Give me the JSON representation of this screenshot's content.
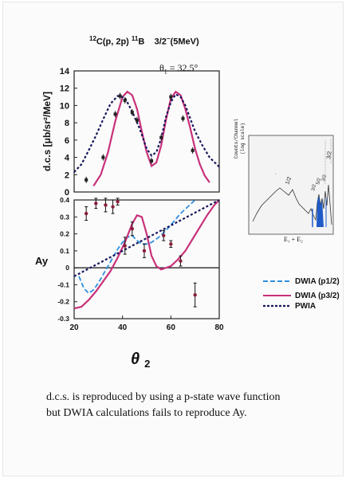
{
  "header": {
    "reaction_prefix": "12",
    "reaction_main": "C(p, 2p)",
    "residual_sup": "11",
    "residual_main": "B",
    "state": "3/2",
    "state_suffix": "(5MeV)",
    "theta1_label": "θ",
    "theta1_sub": "1",
    "theta1_value": "= 32.5°"
  },
  "caption": {
    "line1": "d.c.s. is reproduced by using a p-state wave function",
    "line2": "but DWIA calculations fails to reproduce Ay."
  },
  "colors": {
    "pink": "#c8317a",
    "blue": "#2f8fe0",
    "navy": "#17175c",
    "inset_blue": "#1f5bc8"
  },
  "chart_data": [
    {
      "type": "scatter",
      "ylabel": "d.c.s [μb/sr²/MeV]",
      "ylim": [
        0,
        14
      ],
      "xlim": [
        20,
        80
      ],
      "yticks": [
        "0",
        "2",
        "4",
        "6",
        "8",
        "10",
        "12",
        "14"
      ],
      "points": [
        {
          "x": 25,
          "y": 1.4
        },
        {
          "x": 32,
          "y": 4.0
        },
        {
          "x": 37,
          "y": 9.0
        },
        {
          "x": 39,
          "y": 11.1
        },
        {
          "x": 41,
          "y": 10.6
        },
        {
          "x": 44,
          "y": 9.2
        },
        {
          "x": 46,
          "y": 8.3
        },
        {
          "x": 52,
          "y": 3.6
        },
        {
          "x": 56,
          "y": 6.3
        },
        {
          "x": 60,
          "y": 11.0
        },
        {
          "x": 65,
          "y": 8.5
        },
        {
          "x": 69,
          "y": 4.8
        }
      ],
      "series": [
        {
          "style": "pink",
          "x": [
            28,
            31,
            34,
            37,
            40,
            42,
            44,
            46,
            48,
            50,
            52,
            54,
            56,
            58,
            60,
            62,
            64,
            66,
            68,
            70,
            72,
            74,
            76
          ],
          "y": [
            0.7,
            2.0,
            4.6,
            8.2,
            11.0,
            11.6,
            11.2,
            9.6,
            7.0,
            4.6,
            3.0,
            3.4,
            5.4,
            8.4,
            10.8,
            11.6,
            11.2,
            9.6,
            7.4,
            5.0,
            3.2,
            1.9,
            1.1
          ]
        },
        {
          "style": "navy-dotted",
          "x": [
            20,
            23,
            26,
            29,
            32,
            35,
            38,
            41,
            44,
            47,
            50,
            52,
            54,
            56,
            58,
            60,
            62,
            64,
            66,
            68,
            70,
            73,
            76,
            80
          ],
          "y": [
            2.3,
            3.2,
            4.8,
            6.5,
            8.4,
            10.2,
            11.1,
            10.9,
            9.3,
            7.4,
            5.0,
            4.2,
            4.6,
            6.2,
            8.7,
            10.4,
            11.3,
            11.0,
            10.0,
            8.5,
            7.0,
            5.4,
            4.0,
            2.9
          ]
        }
      ]
    },
    {
      "type": "scatter",
      "ylabel": "Ay",
      "xlabel": "θ",
      "xlabel_sub": "2",
      "ylim": [
        -0.3,
        0.4
      ],
      "xlim": [
        20,
        80
      ],
      "yticks": [
        "0.4",
        "0.3",
        "0.2",
        "0.1",
        "0",
        "-0.1",
        "-0.2",
        "-0.3"
      ],
      "xticks": [
        "20",
        "40",
        "60",
        "80"
      ],
      "points": [
        {
          "x": 25,
          "y": 0.32,
          "err": 0.04
        },
        {
          "x": 29,
          "y": 0.38,
          "err": 0.03
        },
        {
          "x": 33,
          "y": 0.37,
          "err": 0.04
        },
        {
          "x": 36,
          "y": 0.36,
          "err": 0.04
        },
        {
          "x": 38,
          "y": 0.39,
          "err": 0.02
        },
        {
          "x": 41,
          "y": 0.13,
          "err": 0.05
        },
        {
          "x": 44,
          "y": 0.23,
          "err": 0.04
        },
        {
          "x": 49,
          "y": 0.1,
          "err": 0.04
        },
        {
          "x": 57,
          "y": 0.19,
          "err": 0.03
        },
        {
          "x": 60,
          "y": 0.14,
          "err": 0.02
        },
        {
          "x": 64,
          "y": 0.04,
          "err": 0.03
        },
        {
          "x": 70,
          "y": -0.16,
          "err": 0.07
        }
      ],
      "series": [
        {
          "name": "DWIA (p1/2)",
          "style": "blue-dashed",
          "x": [
            22,
            24,
            26,
            28,
            30,
            32,
            34,
            36,
            38,
            40,
            42,
            44,
            46,
            48,
            50,
            52,
            55,
            58,
            61,
            64,
            67,
            70
          ],
          "y": [
            -0.05,
            -0.12,
            -0.15,
            -0.13,
            -0.09,
            -0.04,
            0.01,
            0.06,
            0.11,
            0.15,
            0.18,
            0.19,
            0.16,
            0.14,
            0.14,
            0.15,
            0.18,
            0.22,
            0.27,
            0.32,
            0.36,
            0.4
          ]
        },
        {
          "name": "DWIA (p3/2)",
          "style": "pink",
          "x": [
            20,
            23,
            26,
            29,
            32,
            35,
            38,
            41,
            44,
            46,
            48,
            50,
            52,
            54,
            56,
            58,
            60,
            63,
            66,
            69,
            72,
            75,
            78,
            80
          ],
          "y": [
            -0.24,
            -0.23,
            -0.19,
            -0.14,
            -0.08,
            -0.02,
            0.06,
            0.15,
            0.26,
            0.31,
            0.3,
            0.2,
            0.07,
            0.01,
            -0.01,
            0.0,
            0.01,
            0.05,
            0.1,
            0.17,
            0.24,
            0.31,
            0.37,
            0.4
          ]
        },
        {
          "name": "PWIA",
          "style": "navy-dotted",
          "x": [
            20,
            80
          ],
          "y": [
            -0.05,
            0.4
          ]
        }
      ]
    },
    {
      "type": "line",
      "ylabel": "Counts/Channel",
      "ylabel2": "(log scale)",
      "xlabel": "E₁ + E₂",
      "annotations": [
        "1/2",
        "3/2",
        "5/2",
        "3/2",
        "3/2"
      ]
    }
  ]
}
